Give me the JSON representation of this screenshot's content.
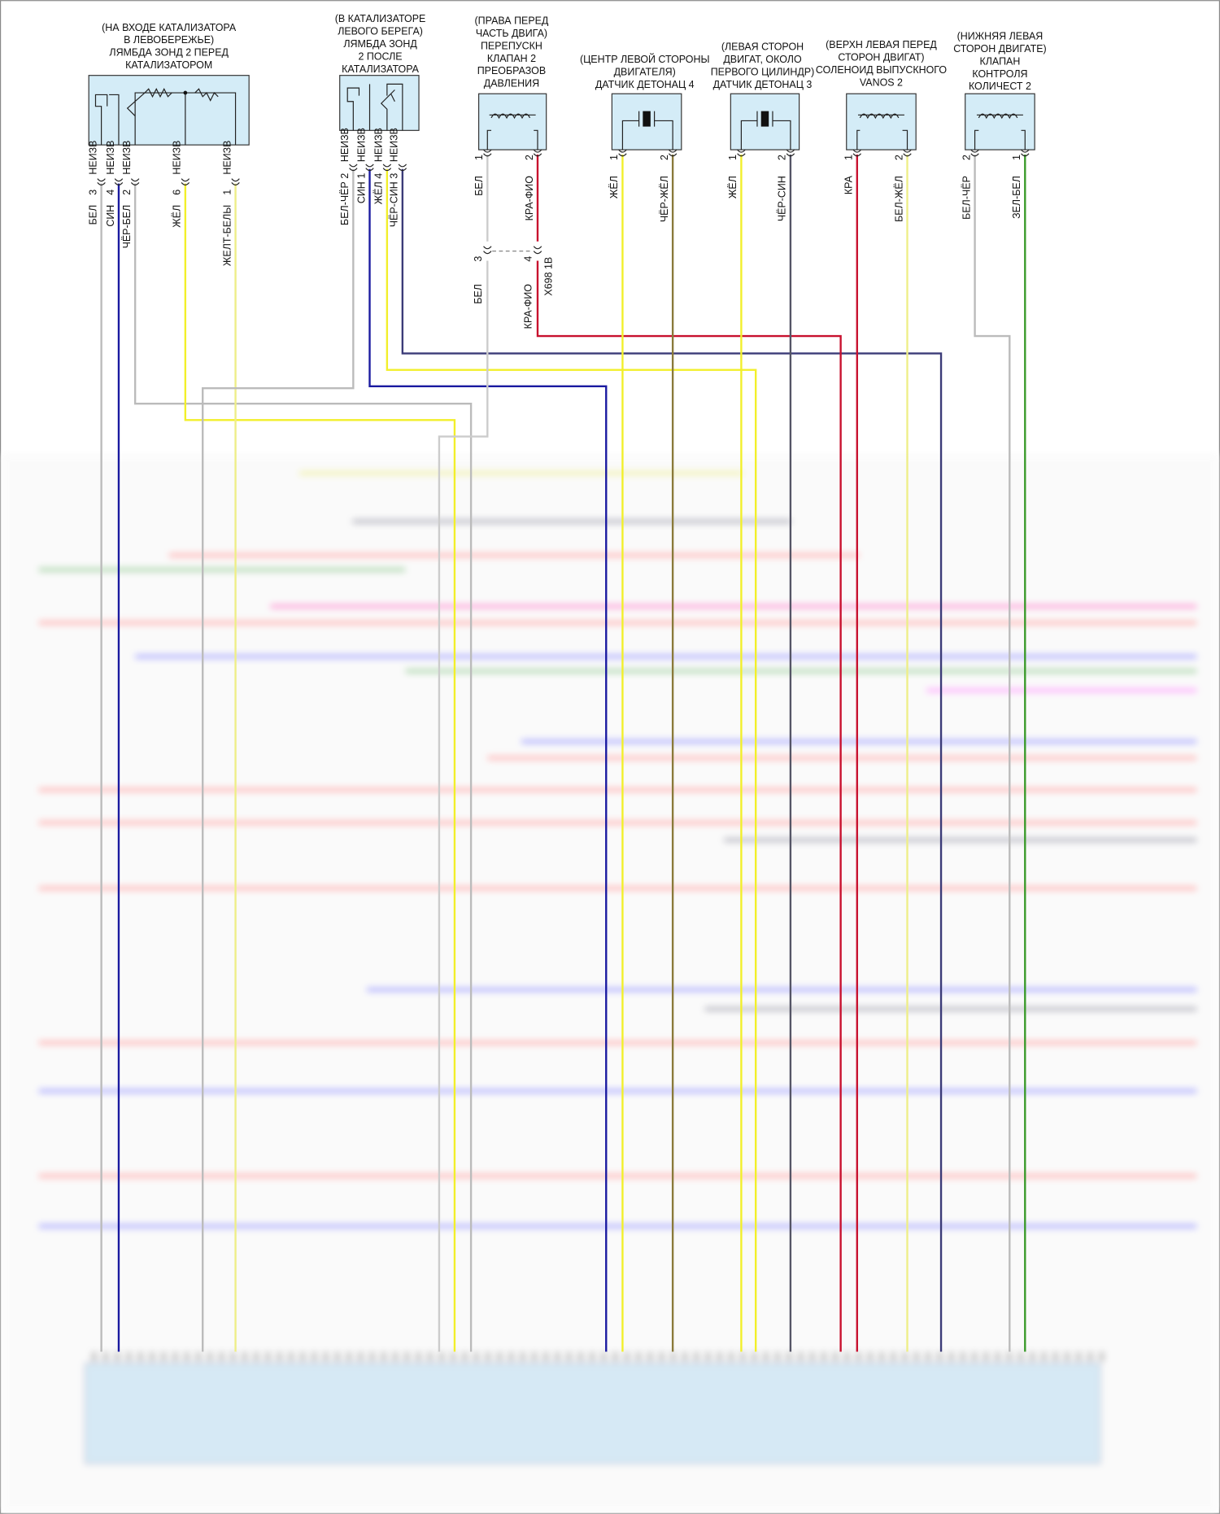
{
  "components": [
    {
      "label_lines": [
        "(НА ВХОДЕ КАТАЛИЗАТОРА",
        "В ЛЕВОБЕРЕЖЬЕ)",
        "ЛЯМБДА ЗОНД 2 ПЕРЕД",
        "КАТАЛИЗАТОРОМ"
      ],
      "pins": [
        {
          "number": "3",
          "code": "НЕИЗВ",
          "wire": "БЕЛ"
        },
        {
          "number": "4",
          "code": "НЕИЗВ",
          "wire": "СИН"
        },
        {
          "number": "2",
          "code": "НЕИЗВ",
          "wire": "ЧЁР-БЕЛ"
        },
        {
          "number": "6",
          "code": "НЕИЗВ",
          "wire": "ЖЁЛ"
        },
        {
          "number": "1",
          "code": "НЕИЗВ",
          "wire": "ЖЕЛТ-БЕЛЫ"
        }
      ]
    },
    {
      "label_lines": [
        "(В КАТАЛИЗАТОРЕ",
        "ЛЕВОГО БЕРЕГА)",
        "ЛЯМБДА ЗОНД",
        "2 ПОСЛЕ",
        "КАТАЛИЗАТОРА"
      ],
      "pins": [
        {
          "number": "2",
          "code": "НЕИЗВ",
          "wire": "БЕЛ-ЧЁР"
        },
        {
          "number": "1",
          "code": "НЕИЗВ",
          "wire": "СИН"
        },
        {
          "number": "4",
          "code": "НЕИЗВ",
          "wire": "ЖЁЛ"
        },
        {
          "number": "3",
          "code": "НЕИЗВ",
          "wire": "ЧЁР-СИН"
        }
      ]
    },
    {
      "label_lines": [
        "(ПРАВА ПЕРЕД",
        "ЧАСТЬ ДВИГА)",
        "ПЕРЕПУСКН",
        "КЛАПАН 2",
        "ПРЕОБРАЗОВ",
        "ДАВЛЕНИЯ"
      ],
      "pins": [
        {
          "number": "1",
          "wire": "БЕЛ"
        },
        {
          "number": "2",
          "wire": "КРА-ФИО"
        }
      ]
    },
    {
      "label_lines": [
        "(ЦЕНТР ЛЕВОЙ СТОРОНЫ",
        "ДВИГАТЕЛЯ)",
        "ДАТЧИК ДЕТОНАЦ 4"
      ],
      "pins": [
        {
          "number": "1",
          "wire": "ЖЁЛ"
        },
        {
          "number": "2",
          "wire": "ЧЁР-ЖЁЛ"
        }
      ]
    },
    {
      "label_lines": [
        "(ЛЕВАЯ СТОРОН",
        "ДВИГАТ, ОКОЛО",
        "ПЕРВОГО ЦИЛИНДР)",
        "ДАТЧИК ДЕТОНАЦ 3"
      ],
      "pins": [
        {
          "number": "1",
          "wire": "ЖЁЛ"
        },
        {
          "number": "2",
          "wire": "ЧЁР-СИН"
        }
      ]
    },
    {
      "label_lines": [
        "(ВЕРХН ЛЕВАЯ ПЕРЕД",
        "СТОРОН ДВИГАТ)",
        "СОЛЕНОИД ВЫПУСКНОГО",
        "VANOS 2"
      ],
      "pins": [
        {
          "number": "1",
          "wire": "КРА"
        },
        {
          "number": "2",
          "wire": "БЕЛ-ЖЁЛ"
        }
      ]
    },
    {
      "label_lines": [
        "(НИЖНЯЯ ЛЕВАЯ",
        "СТОРОН ДВИГАТЕ)",
        "КЛАПАН",
        "КОНТРОЛЯ",
        "КОЛИЧЕСТ 2"
      ],
      "pins": [
        {
          "number": "2",
          "wire": "БЕЛ-ЧЁР"
        },
        {
          "number": "1",
          "wire": "ЗЕЛ-БЕЛ"
        }
      ]
    }
  ],
  "connector": {
    "name": "X698 1B",
    "pins": [
      {
        "number": "3",
        "wire": "БЕЛ"
      },
      {
        "number": "4",
        "wire": "КРА-ФИО"
      }
    ]
  }
}
